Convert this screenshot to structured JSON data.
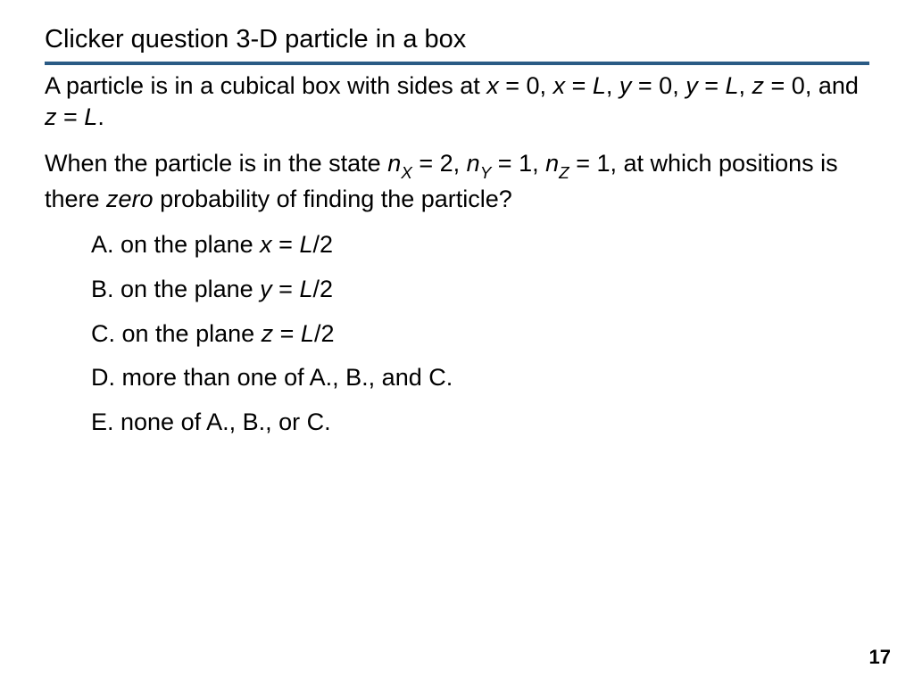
{
  "title": "Clicker question 3-D particle in a box",
  "rule_color": "#2a5b85",
  "para1_pre": "A particle is in a cubical box with sides at ",
  "x": "x",
  "y": "y",
  "z": "z",
  "L": "L",
  "eq0": " = 0",
  "eqL_pre": " = ",
  "comma": ", ",
  "and": ", and ",
  "period": ".",
  "para2_pre": "When the particle is in the state ",
  "n": "n",
  "subX": "X",
  "subY": "Y",
  "subZ": "Z",
  "eq2": " = 2",
  "eq1": " = 1",
  "para2_mid": ", at which positions is there ",
  "zero": "zero",
  "para2_post": " probability of finding the particle?",
  "optA_pre": "A. on the plane ",
  "optB_pre": "B. on the plane ",
  "optC_pre": "C. on the plane ",
  "half": "/2",
  "optD": "D. more than one of A., B., and C.",
  "optE": "E. none of A., B., or C.",
  "page_number": "17",
  "font_size_title": 29,
  "font_size_body": 27,
  "font_size_pagenum": 22,
  "text_color": "#000000",
  "background_color": "#ffffff"
}
